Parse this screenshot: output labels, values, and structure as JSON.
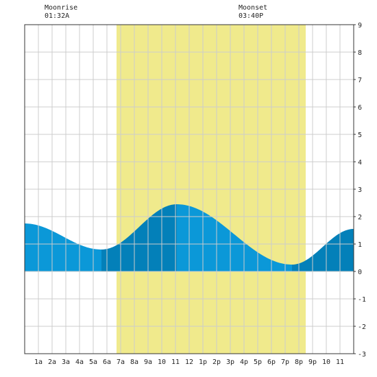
{
  "moonrise": {
    "label": "Moonrise",
    "time": "01:32A"
  },
  "moonset": {
    "label": "Moonset",
    "time": "03:40P"
  },
  "chart_data": {
    "type": "area",
    "title": "",
    "xlabel": "",
    "ylabel": "",
    "xlim": [
      0,
      24
    ],
    "ylim": [
      -3,
      9
    ],
    "x_unit": "hours",
    "x_tick_labels": [
      "1a",
      "2a",
      "3a",
      "4a",
      "5a",
      "6a",
      "7a",
      "8a",
      "9a",
      "10",
      "11",
      "12",
      "1p",
      "2p",
      "3p",
      "4p",
      "5p",
      "6p",
      "7p",
      "8p",
      "9p",
      "10",
      "11"
    ],
    "y_ticks": [
      -3,
      -2,
      -1,
      0,
      1,
      2,
      3,
      4,
      5,
      6,
      7,
      8,
      9
    ],
    "grid": true,
    "daylight_band_hours": [
      6.7,
      20.5
    ],
    "moonrise_hour": 1.53,
    "moonset_hour": 15.67,
    "tide_extrema": [
      {
        "x": 0.0,
        "y": 1.75
      },
      {
        "x": 5.6,
        "y": 0.8
      },
      {
        "x": 11.1,
        "y": 2.45
      },
      {
        "x": 19.5,
        "y": 0.25
      },
      {
        "x": 24.0,
        "y": 1.55
      }
    ],
    "rising_segments": [
      [
        5.6,
        11.1
      ],
      [
        19.5,
        24.0
      ]
    ],
    "colors": {
      "daylight": "#f0ea8c",
      "falling": "#0b98d8",
      "rising": "#0380b9",
      "grid": "#cccccc",
      "axis": "#333333"
    }
  }
}
